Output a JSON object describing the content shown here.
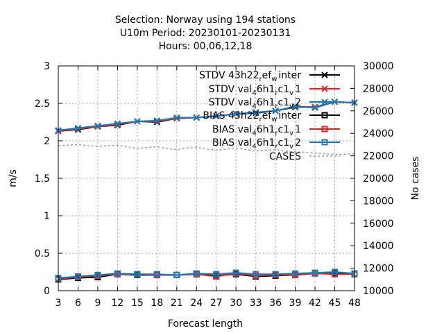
{
  "chart_data": {
    "type": "line",
    "title_lines": [
      "Selection: Norway using   194 stations",
      "U10m   Period: 20230101-20230131",
      "Hours:  00,06,12,18"
    ],
    "xlabel": "Forecast length",
    "ylabel": "m/s",
    "y2label": "No cases",
    "x": [
      3,
      6,
      9,
      12,
      15,
      18,
      21,
      24,
      27,
      30,
      33,
      36,
      39,
      42,
      45,
      48
    ],
    "xlim": [
      3,
      48
    ],
    "ylim": [
      0,
      3
    ],
    "y2lim": [
      10000,
      30000
    ],
    "yticks": [
      "0",
      "0.5",
      "1",
      "1.5",
      "2",
      "2.5",
      "3"
    ],
    "y2ticks": [
      "10000",
      "12000",
      "14000",
      "16000",
      "18000",
      "20000",
      "22000",
      "24000",
      "26000",
      "28000",
      "30000"
    ],
    "grid": true,
    "legend_position": "top-right",
    "series": [
      {
        "name": "STDV 43h22_r ef_w inter",
        "legend": {
          "pre": "STDV 43h22",
          "sub1": "r",
          "mid": "ef",
          "sub2": "w",
          "post": "inter"
        },
        "color": "#000000",
        "marker": "x",
        "axis": "y",
        "values": [
          2.13,
          2.15,
          2.19,
          2.21,
          2.26,
          2.25,
          2.3,
          2.31,
          2.33,
          2.36,
          2.37,
          2.4,
          2.45,
          2.45,
          2.52,
          2.51
        ]
      },
      {
        "name": "STDV val_4 6h1_r c1_v 1",
        "legend": {
          "pre": "STDV val",
          "sub1": "4",
          "mid": "6h1",
          "sub2": "r",
          "mid2": "c1",
          "sub3": "v",
          "post": "1"
        },
        "color": "#dd2222",
        "marker": "x",
        "axis": "y",
        "values": [
          2.13,
          2.16,
          2.19,
          2.22,
          2.26,
          2.26,
          2.3,
          2.31,
          2.33,
          2.36,
          2.38,
          2.4,
          2.46,
          2.45,
          2.52,
          2.51
        ]
      },
      {
        "name": "STDV val_4 6h1_r c1_v 2",
        "legend": {
          "pre": "STDV val",
          "sub1": "4",
          "mid": "6h1",
          "sub2": "r",
          "mid2": "c1",
          "sub3": "v",
          "post": "2"
        },
        "color": "#1a7ab5",
        "marker": "x",
        "axis": "y",
        "values": [
          2.14,
          2.17,
          2.2,
          2.23,
          2.26,
          2.27,
          2.31,
          2.31,
          2.33,
          2.36,
          2.38,
          2.4,
          2.46,
          2.44,
          2.52,
          2.51
        ]
      },
      {
        "name": "BIAS 43h22_r ef_w inter",
        "legend": {
          "pre": "BIAS 43h22",
          "sub1": "r",
          "mid": "ef",
          "sub2": "w",
          "post": "inter"
        },
        "color": "#000000",
        "marker": "square",
        "axis": "y",
        "values": [
          0.15,
          0.17,
          0.18,
          0.22,
          0.21,
          0.21,
          0.21,
          0.22,
          0.2,
          0.22,
          0.19,
          0.2,
          0.21,
          0.23,
          0.23,
          0.22
        ]
      },
      {
        "name": "BIAS val_4 6h1_r c1_v 1",
        "legend": {
          "pre": "BIAS val",
          "sub1": "4",
          "mid": "6h1",
          "sub2": "r",
          "mid2": "c1",
          "sub3": "v",
          "post": "1"
        },
        "color": "#dd2222",
        "marker": "square",
        "axis": "y",
        "values": [
          0.16,
          0.18,
          0.2,
          0.22,
          0.22,
          0.21,
          0.21,
          0.22,
          0.19,
          0.23,
          0.2,
          0.21,
          0.21,
          0.23,
          0.22,
          0.22
        ]
      },
      {
        "name": "BIAS val_4 6h1_r c1_v 2",
        "legend": {
          "pre": "BIAS val",
          "sub1": "4",
          "mid": "6h1",
          "sub2": "r",
          "mid2": "c1",
          "sub3": "v",
          "post": "2"
        },
        "color": "#1a7ab5",
        "marker": "square",
        "axis": "y",
        "values": [
          0.17,
          0.19,
          0.21,
          0.23,
          0.22,
          0.22,
          0.21,
          0.23,
          0.22,
          0.24,
          0.22,
          0.22,
          0.23,
          0.24,
          0.25,
          0.23
        ]
      },
      {
        "name": "CASES",
        "legend": {
          "pre": "CASES"
        },
        "color": "#999999",
        "marker": "none",
        "dashed": true,
        "axis": "y2",
        "x": [
          3,
          4.5,
          6,
          7.5,
          9,
          10.5,
          12,
          13.5,
          15,
          16.5,
          18,
          19.5,
          21,
          22.5,
          24,
          25.5,
          27,
          28.5,
          30,
          31.5,
          33,
          34.5,
          36,
          37.5,
          39,
          40.5,
          42,
          43.5,
          45,
          46.5,
          48
        ],
        "values": [
          22900,
          22950,
          23000,
          22900,
          22850,
          22900,
          22950,
          22800,
          22650,
          22750,
          22800,
          22650,
          22550,
          22700,
          22750,
          22600,
          22500,
          22600,
          22700,
          22550,
          22450,
          22500,
          22550,
          22400,
          22350,
          22300,
          22250,
          22200,
          22100,
          22150,
          22200
        ]
      }
    ]
  }
}
